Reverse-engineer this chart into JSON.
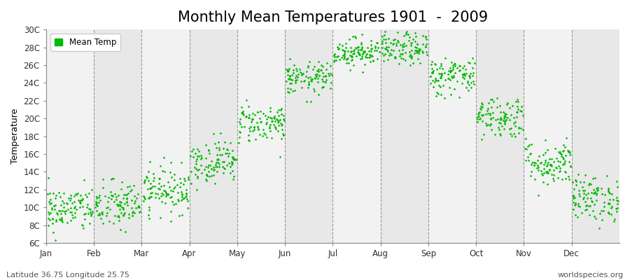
{
  "title": "Monthly Mean Temperatures 1901  -  2009",
  "ylabel": "Temperature",
  "xlabel": "",
  "footer_left": "Latitude 36.75 Longitude 25.75",
  "footer_right": "worldspecies.org",
  "legend_label": "Mean Temp",
  "ylim": [
    6,
    30
  ],
  "yticks": [
    6,
    8,
    10,
    12,
    14,
    16,
    18,
    20,
    22,
    24,
    26,
    28,
    30
  ],
  "ytick_labels": [
    "6C",
    "8C",
    "10C",
    "12C",
    "14C",
    "16C",
    "18C",
    "20C",
    "22C",
    "24C",
    "26C",
    "28C",
    "30C"
  ],
  "months": [
    "Jan",
    "Feb",
    "Mar",
    "Apr",
    "May",
    "Jun",
    "Jul",
    "Aug",
    "Sep",
    "Oct",
    "Nov",
    "Dec"
  ],
  "month_mean_temps": [
    9.8,
    10.2,
    12.0,
    15.2,
    19.5,
    24.5,
    27.5,
    27.8,
    24.8,
    20.2,
    15.0,
    11.0
  ],
  "month_std_temps": [
    1.3,
    1.4,
    1.3,
    1.2,
    1.1,
    0.9,
    0.8,
    0.9,
    1.1,
    1.2,
    1.3,
    1.3
  ],
  "n_years": 109,
  "dot_color": "#00BB00",
  "dot_size": 3,
  "bg_color_light": "#f2f2f2",
  "bg_color_dark": "#e8e8e8",
  "grid_line_color": "#999999",
  "title_fontsize": 15,
  "axis_fontsize": 9,
  "tick_fontsize": 8.5,
  "footer_fontsize": 8
}
